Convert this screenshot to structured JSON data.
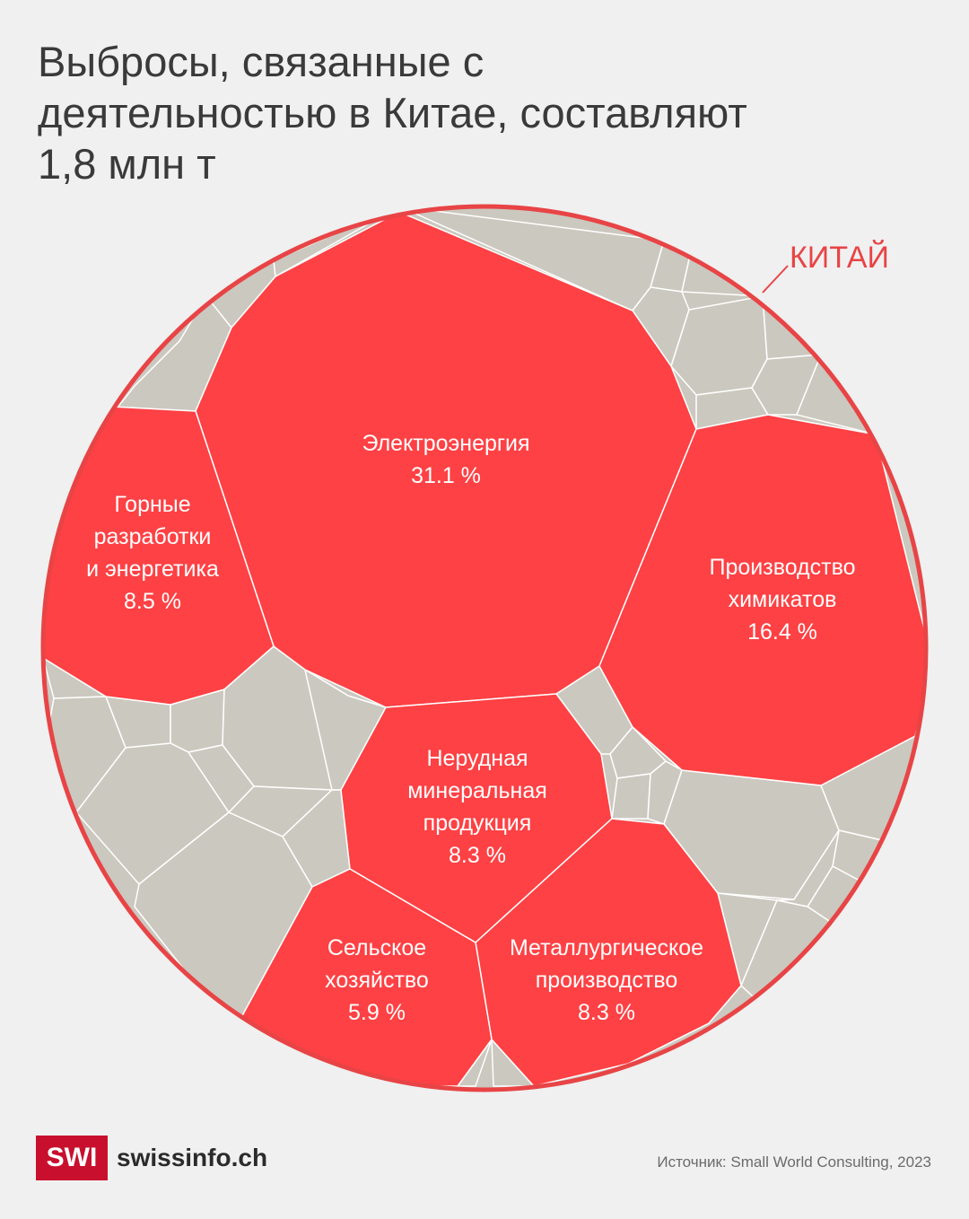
{
  "title_lines": [
    "Выбросы, связанные с",
    "деятельностью в Китае, составляют",
    "1,8 млн т"
  ],
  "region_label": "КИТАЙ",
  "colors": {
    "highlight": "#fe4144",
    "other": "#cbc8bf",
    "background": "#f0f0f0",
    "outline": "#e84446",
    "brand": "#c8102e"
  },
  "chart_data": {
    "type": "voronoi-treemap",
    "title": "Выбросы, связанные с деятельностью в Китае, составляют 1,8 млн т",
    "unit": "%",
    "sectors": [
      {
        "label": [
          "Электроэнергия"
        ],
        "value_text": "31.1 %",
        "value": 31.1
      },
      {
        "label": [
          "Производство",
          "химикатов"
        ],
        "value_text": "16.4 %",
        "value": 16.4
      },
      {
        "label": [
          "Горные",
          "разработки",
          "и энергетика"
        ],
        "value_text": "8.5 %",
        "value": 8.5
      },
      {
        "label": [
          "Нерудная",
          "минеральная",
          "продукция"
        ],
        "value_text": "8.3 %",
        "value": 8.3
      },
      {
        "label": [
          "Металлургическое",
          "производство"
        ],
        "value_text": "8.3 %",
        "value": 8.3
      },
      {
        "label": [
          "Сельское",
          "хозяйство"
        ],
        "value_text": "5.9 %",
        "value": 5.9
      }
    ]
  },
  "footer": {
    "logo_mark": "SWI",
    "logo_text": "swissinfo.ch",
    "source": "Источник: Small World Consulting, 2023"
  }
}
